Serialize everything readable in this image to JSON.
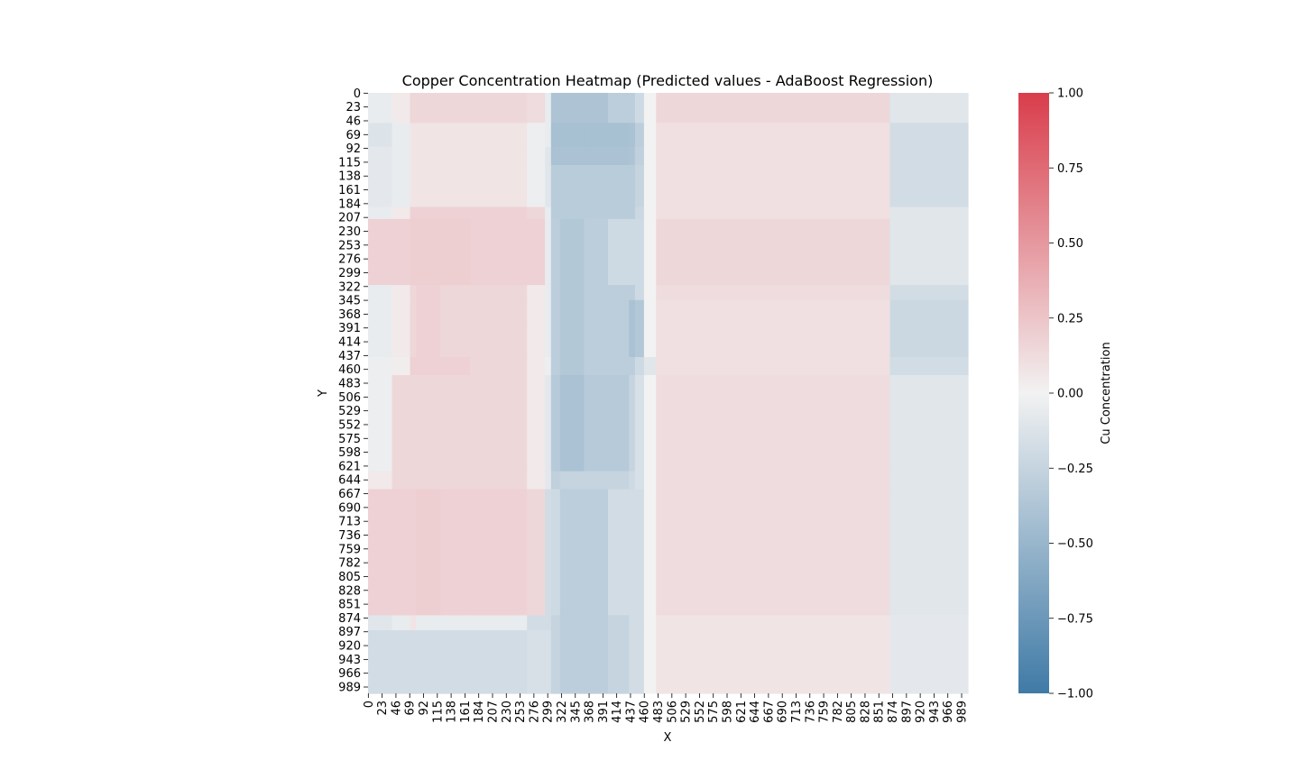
{
  "chart_data": {
    "type": "heatmap",
    "title": "Copper Concentration Heatmap (Predicted values - AdaBoost Regression)",
    "xlabel": "X",
    "ylabel": "Y",
    "colorbar_label": "Cu Concentration",
    "vmin": -1.0,
    "vmax": 1.0,
    "colormap": {
      "low": "#3f7aa6",
      "mid": "#f2f2f2",
      "high": "#d93d4b"
    },
    "x_domain": [
      0,
      1000
    ],
    "y_domain": [
      0,
      1000
    ],
    "x_ticks": [
      "0",
      "23",
      "46",
      "69",
      "92",
      "115",
      "138",
      "161",
      "184",
      "207",
      "230",
      "253",
      "276",
      "299",
      "322",
      "345",
      "368",
      "391",
      "414",
      "437",
      "460",
      "483",
      "506",
      "529",
      "552",
      "575",
      "598",
      "621",
      "644",
      "667",
      "690",
      "713",
      "736",
      "759",
      "782",
      "805",
      "828",
      "851",
      "874",
      "897",
      "920",
      "943",
      "966",
      "989"
    ],
    "y_ticks": [
      "0",
      "23",
      "46",
      "69",
      "92",
      "115",
      "138",
      "161",
      "184",
      "207",
      "230",
      "253",
      "276",
      "299",
      "322",
      "345",
      "368",
      "391",
      "414",
      "437",
      "460",
      "483",
      "506",
      "529",
      "552",
      "575",
      "598",
      "621",
      "644",
      "667",
      "690",
      "713",
      "736",
      "759",
      "782",
      "805",
      "828",
      "851",
      "874",
      "897",
      "920",
      "943",
      "966",
      "989"
    ],
    "colorbar_ticks": [
      "1.00",
      "0.75",
      "0.50",
      "0.25",
      "0.00",
      "−0.25",
      "−0.50",
      "−0.75",
      "−1.00"
    ],
    "colorbar_tick_values": [
      1.0,
      0.75,
      0.5,
      0.25,
      0.0,
      -0.25,
      -0.5,
      -0.75,
      -1.0
    ],
    "x_breaks": [
      0,
      40,
      70,
      80,
      120,
      170,
      265,
      295,
      305,
      320,
      360,
      400,
      435,
      445,
      460,
      480,
      870,
      1000
    ],
    "y_breaks": [
      0,
      50,
      90,
      120,
      190,
      210,
      320,
      345,
      380,
      440,
      470,
      630,
      660,
      870,
      895,
      1000
    ],
    "values": [
      [
        -0.05,
        0.05,
        0.15,
        0.15,
        0.15,
        0.15,
        0.12,
        -0.05,
        -0.38,
        -0.38,
        -0.38,
        -0.3,
        -0.3,
        -0.2,
        0.0,
        0.15,
        -0.1
      ],
      [
        -0.12,
        -0.05,
        0.08,
        0.08,
        0.08,
        0.08,
        -0.03,
        -0.05,
        -0.42,
        -0.42,
        -0.42,
        -0.42,
        -0.4,
        -0.3,
        0.0,
        0.1,
        -0.18
      ],
      [
        -0.08,
        -0.05,
        0.08,
        0.08,
        0.08,
        0.08,
        -0.03,
        -0.1,
        -0.4,
        -0.4,
        -0.4,
        -0.4,
        -0.38,
        -0.28,
        0.0,
        0.1,
        -0.18
      ],
      [
        -0.08,
        -0.05,
        0.08,
        0.08,
        0.08,
        0.08,
        -0.03,
        -0.1,
        -0.32,
        -0.32,
        -0.32,
        -0.32,
        -0.32,
        -0.25,
        0.0,
        0.1,
        -0.18
      ],
      [
        -0.05,
        0.05,
        0.18,
        0.18,
        0.18,
        0.18,
        0.15,
        -0.05,
        -0.32,
        -0.32,
        -0.32,
        -0.32,
        -0.32,
        -0.22,
        0.0,
        0.1,
        -0.1
      ],
      [
        0.18,
        0.18,
        0.2,
        0.2,
        0.2,
        0.18,
        0.18,
        -0.05,
        -0.3,
        -0.35,
        -0.3,
        -0.2,
        -0.2,
        -0.2,
        0.0,
        0.15,
        -0.1
      ],
      [
        -0.05,
        0.05,
        0.15,
        0.18,
        0.15,
        0.15,
        0.05,
        -0.05,
        -0.3,
        -0.35,
        -0.3,
        -0.3,
        -0.3,
        -0.2,
        0.0,
        0.12,
        -0.18
      ],
      [
        -0.05,
        0.05,
        0.15,
        0.18,
        0.15,
        0.15,
        0.05,
        -0.05,
        -0.3,
        -0.35,
        -0.3,
        -0.3,
        -0.4,
        -0.35,
        0.0,
        0.1,
        -0.22
      ],
      [
        -0.05,
        0.05,
        0.15,
        0.18,
        0.15,
        0.15,
        0.05,
        -0.05,
        -0.3,
        -0.35,
        -0.3,
        -0.3,
        -0.4,
        -0.35,
        0.0,
        0.1,
        -0.22
      ],
      [
        -0.03,
        0.03,
        0.18,
        0.18,
        0.18,
        0.15,
        0.05,
        -0.03,
        -0.3,
        -0.35,
        -0.3,
        -0.3,
        -0.3,
        -0.2,
        -0.1,
        0.1,
        -0.18
      ],
      [
        -0.03,
        0.15,
        0.15,
        0.15,
        0.15,
        0.15,
        0.05,
        -0.08,
        -0.33,
        -0.4,
        -0.33,
        -0.33,
        -0.25,
        -0.15,
        0.0,
        0.12,
        -0.1
      ],
      [
        0.05,
        0.15,
        0.15,
        0.15,
        0.15,
        0.15,
        0.05,
        -0.08,
        -0.28,
        -0.25,
        -0.25,
        -0.25,
        -0.2,
        -0.15,
        0.0,
        0.12,
        -0.1
      ],
      [
        0.18,
        0.18,
        0.18,
        0.2,
        0.18,
        0.18,
        0.15,
        -0.18,
        -0.2,
        -0.3,
        -0.3,
        -0.18,
        -0.18,
        -0.18,
        0.0,
        0.12,
        -0.1
      ],
      [
        -0.1,
        -0.05,
        0.08,
        -0.05,
        -0.05,
        -0.05,
        -0.18,
        -0.18,
        -0.25,
        -0.3,
        -0.3,
        -0.25,
        -0.18,
        -0.18,
        0.0,
        0.08,
        -0.08
      ],
      [
        -0.18,
        -0.18,
        -0.18,
        -0.18,
        -0.18,
        -0.18,
        -0.15,
        -0.15,
        -0.25,
        -0.3,
        -0.3,
        -0.25,
        -0.18,
        -0.18,
        0.0,
        0.08,
        -0.08
      ]
    ]
  }
}
